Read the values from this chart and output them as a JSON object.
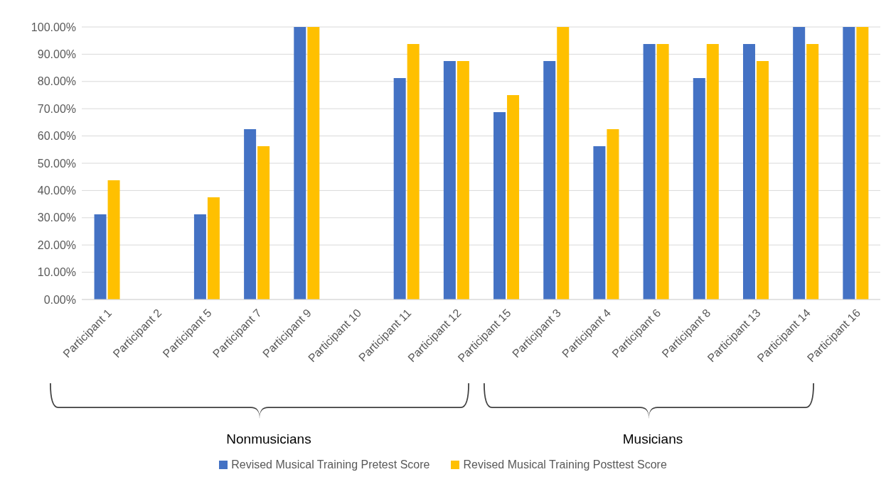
{
  "chart_data": {
    "type": "bar",
    "categories": [
      "Participant 1",
      "Participant 2",
      "Participant 5",
      "Participant 7",
      "Participant 9",
      "Participant 10",
      "Participant 11",
      "Participant 12",
      "Participant 15",
      "Participant 3",
      "Participant 4",
      "Participant 6",
      "Participant 8",
      "Participant 13",
      "Participant 14",
      "Participant 16"
    ],
    "series": [
      {
        "name": "Revised Musical Training Pretest Score",
        "color": "#4472c4",
        "values": [
          31.25,
          0,
          31.25,
          62.5,
          100,
          0,
          81.25,
          87.5,
          68.75,
          87.5,
          56.25,
          93.75,
          81.25,
          93.75,
          100,
          100
        ]
      },
      {
        "name": "Revised Musical Training Posttest Score",
        "color": "#ffc000",
        "values": [
          43.75,
          0,
          37.5,
          56.25,
          100,
          0,
          93.75,
          87.5,
          75,
          100,
          62.5,
          93.75,
          93.75,
          87.5,
          93.75,
          100
        ]
      }
    ],
    "ylim": [
      0,
      100
    ],
    "yticks": [
      {
        "value": 0,
        "label": "0.00%"
      },
      {
        "value": 10,
        "label": "10.00%"
      },
      {
        "value": 20,
        "label": "20.00%"
      },
      {
        "value": 30,
        "label": "30.00%"
      },
      {
        "value": 40,
        "label": "40.00%"
      },
      {
        "value": 50,
        "label": "50.00%"
      },
      {
        "value": 60,
        "label": "60.00%"
      },
      {
        "value": 70,
        "label": "70.00%"
      },
      {
        "value": 80,
        "label": "80.00%"
      },
      {
        "value": 90,
        "label": "90.00%"
      },
      {
        "value": 100,
        "label": "100.00%"
      }
    ],
    "grid": "y",
    "legend": "bottom",
    "annotations": [
      "Nonmusicians",
      "Musicians"
    ]
  }
}
